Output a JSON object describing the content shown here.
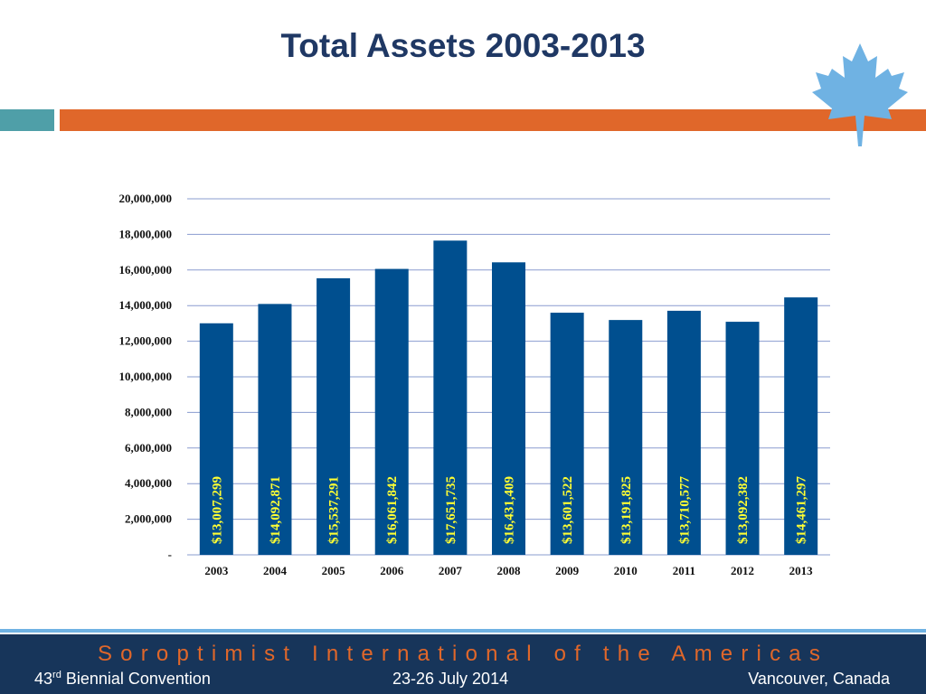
{
  "title": "Total Assets 2003-2013",
  "colors": {
    "title": "#1f3864",
    "accent_teal": "#4f9fa8",
    "accent_orange": "#e0672a",
    "bar": "#004f8f",
    "data_label": "#ffff33",
    "grid": "#8a9ccf",
    "leaf": "#6fb2e3",
    "footer_bg": "#17355a",
    "footer_line": "#6fb2e3",
    "org_name": "#e0672a"
  },
  "icons": {
    "leaf": "maple-leaf-icon"
  },
  "footer": {
    "org_name": "Soroptimist International of the Americas",
    "left_number": "43",
    "left_sup": "rd",
    "left_rest": " Biennial Convention",
    "middle": "23-26 July 2014",
    "right": "Vancouver, Canada"
  },
  "chart_data": {
    "type": "bar",
    "title": "",
    "xlabel": "",
    "ylabel": "",
    "categories": [
      "2003",
      "2004",
      "2005",
      "2006",
      "2007",
      "2008",
      "2009",
      "2010",
      "2011",
      "2012",
      "2013"
    ],
    "values": [
      13007299,
      14092871,
      15537291,
      16061842,
      17651735,
      16431409,
      13601522,
      13191825,
      13710577,
      13092382,
      14461297
    ],
    "data_labels": [
      "$13,007,299",
      "$14,092,871",
      "$15,537,291",
      "$16,061,842",
      "$17,651,735",
      "$16,431,409",
      "$13,601,522",
      "$13,191,825",
      "$13,710,577",
      "$13,092,382",
      "$14,461,297"
    ],
    "ylim": [
      0,
      20000000
    ],
    "y_ticks": [
      0,
      2000000,
      4000000,
      6000000,
      8000000,
      10000000,
      12000000,
      14000000,
      16000000,
      18000000,
      20000000
    ],
    "y_tick_labels": [
      "-",
      "2,000,000",
      "4,000,000",
      "6,000,000",
      "8,000,000",
      "10,000,000",
      "12,000,000",
      "14,000,000",
      "16,000,000",
      "18,000,000",
      "20,000,000"
    ],
    "grid": true,
    "legend": "none"
  }
}
